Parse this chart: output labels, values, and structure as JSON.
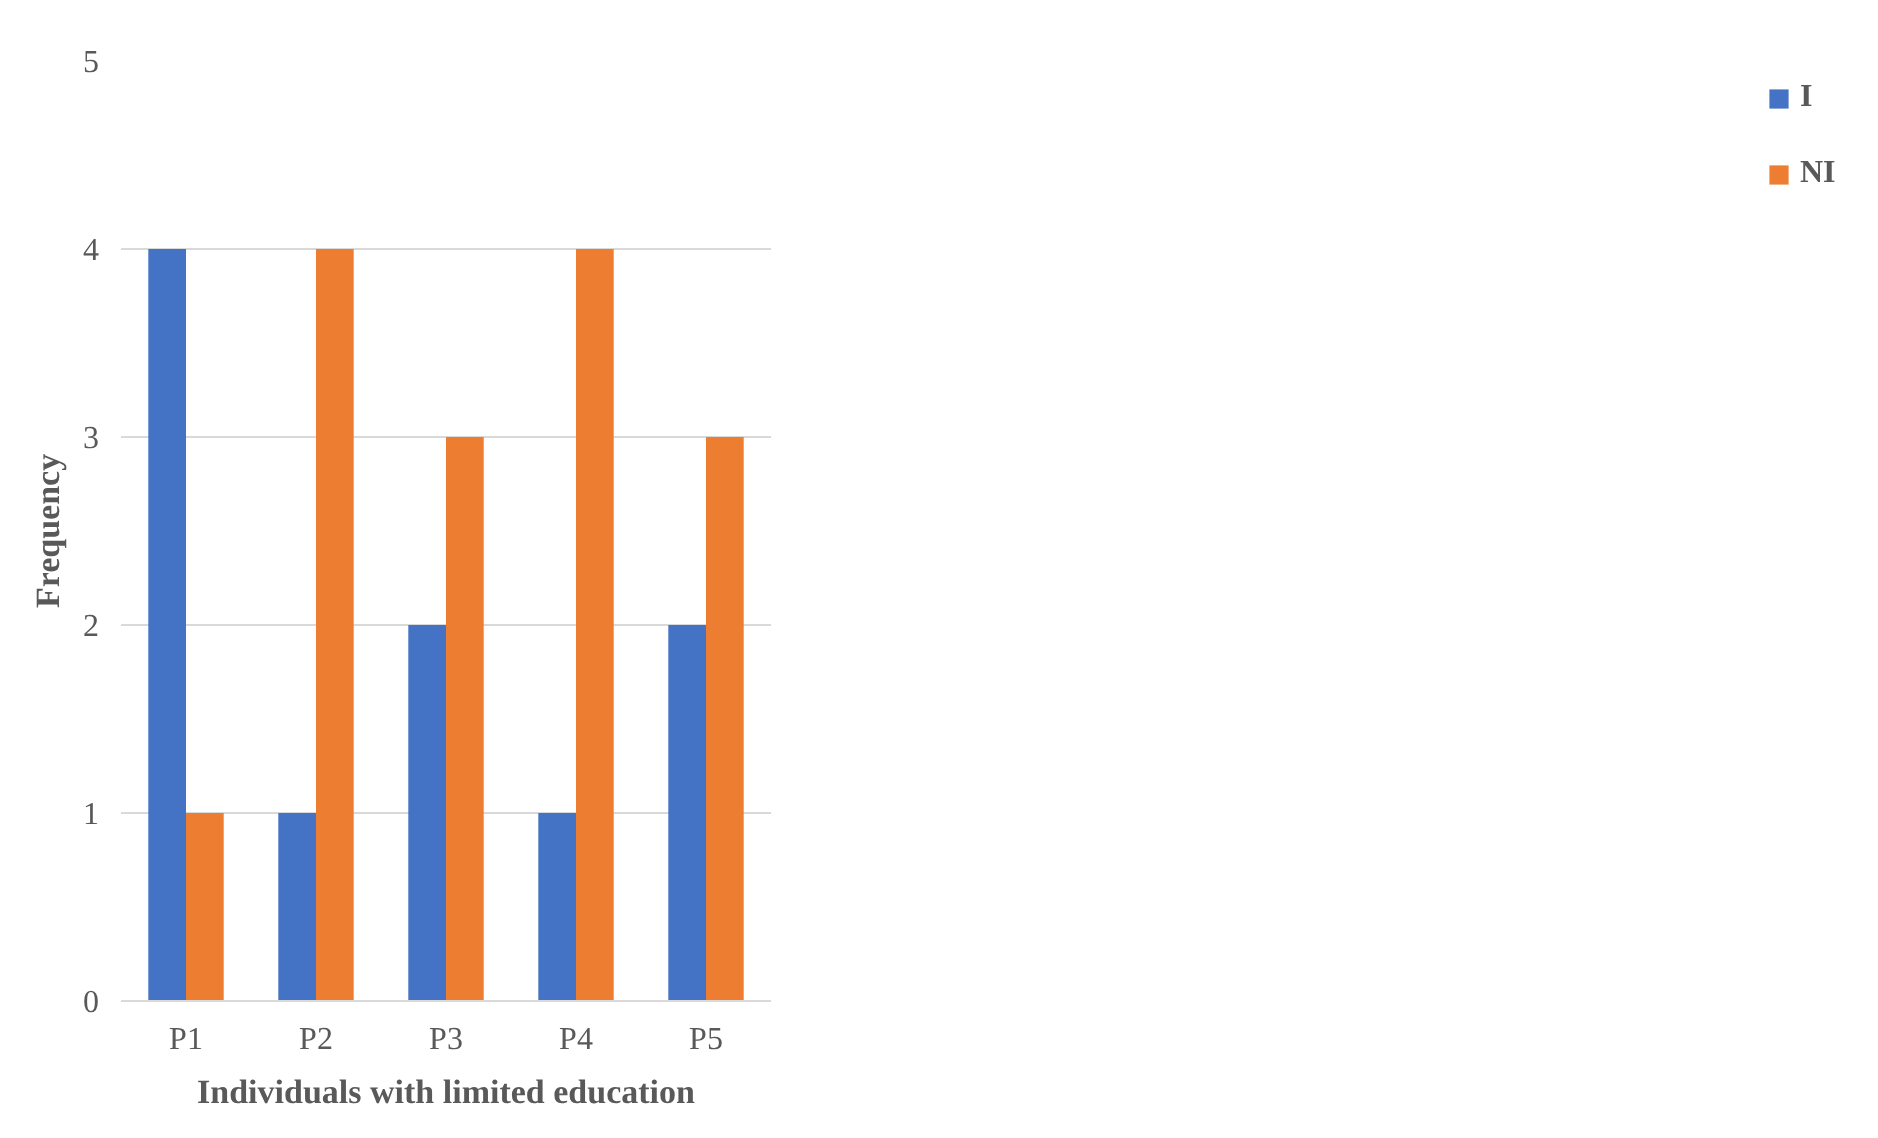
{
  "chart_data": {
    "type": "bar",
    "xlabel": "Individuals with limited education",
    "ylabel": "Frequency",
    "categories": [
      "P1",
      "P2",
      "P3",
      "P4",
      "P5"
    ],
    "series": [
      {
        "name": "I",
        "color": "#4472c4",
        "values": [
          4,
          1,
          2,
          1,
          2
        ]
      },
      {
        "name": "NI",
        "color": "#ed7d31",
        "values": [
          1,
          4,
          3,
          4,
          3
        ]
      }
    ],
    "ylim": [
      0,
      5
    ],
    "yticks": [
      0,
      1,
      2,
      3,
      4,
      5
    ],
    "grid": "y",
    "legend": "right"
  }
}
